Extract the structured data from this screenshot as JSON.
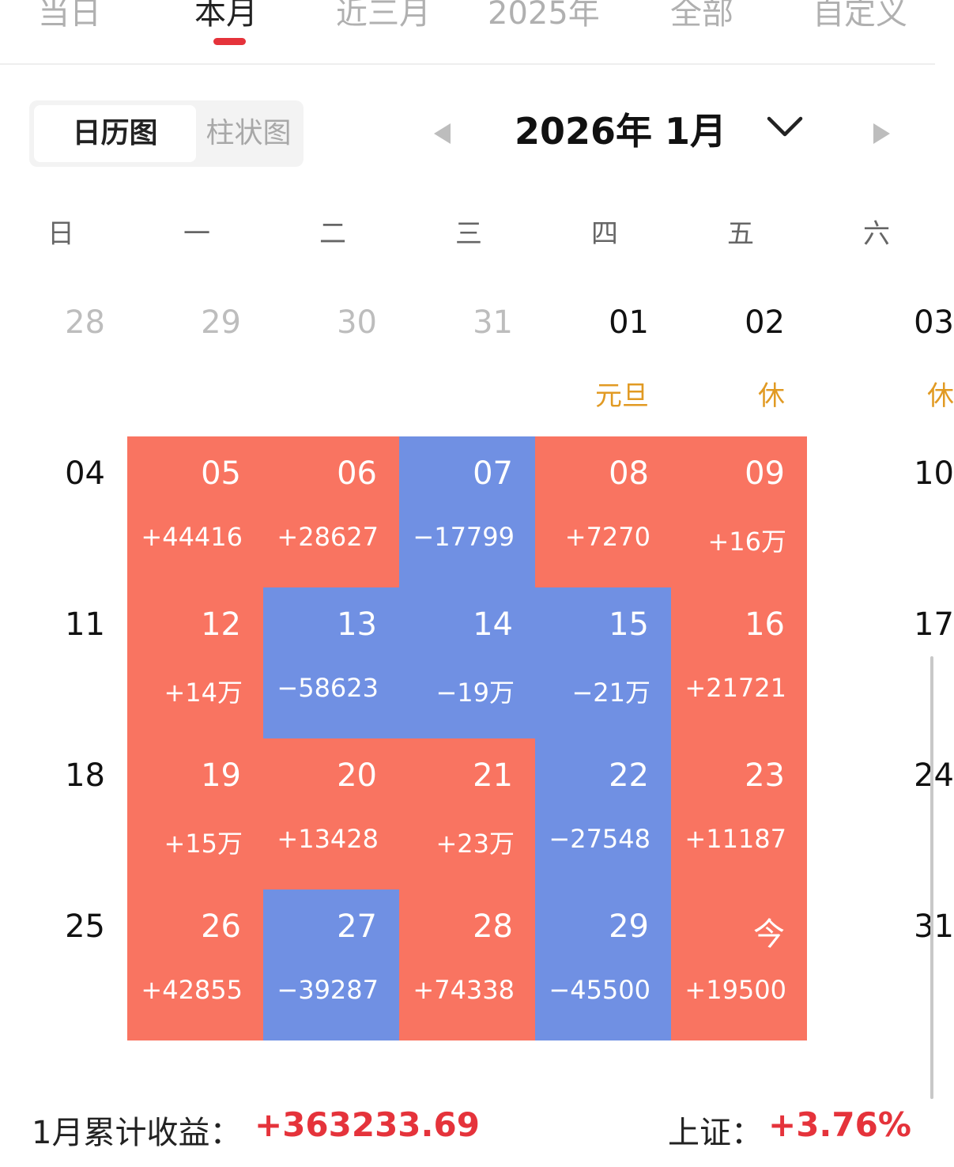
{
  "period_tabs": [
    "当日",
    "本月",
    "近三月",
    "2025年",
    "全部",
    "自定义"
  ],
  "active_period": "本月",
  "view_toggle": {
    "calendar": "日历图",
    "bar": "柱状图"
  },
  "month_nav": {
    "title": "2026年 1月"
  },
  "weekdays": [
    "日",
    "一",
    "二",
    "三",
    "四",
    "五",
    "六"
  ],
  "weeks": [
    [
      {
        "day": "28",
        "muted": true
      },
      {
        "day": "29",
        "muted": true
      },
      {
        "day": "30",
        "muted": true
      },
      {
        "day": "31",
        "muted": true
      },
      {
        "day": "01",
        "holiday": "元旦"
      },
      {
        "day": "02",
        "holiday": "休"
      },
      {
        "day": "03",
        "holiday": "休"
      }
    ],
    [
      {
        "day": "04"
      },
      {
        "day": "05",
        "amount": "+44416",
        "trend": "up"
      },
      {
        "day": "06",
        "amount": "+28627",
        "trend": "up"
      },
      {
        "day": "07",
        "amount": "−17799",
        "trend": "down"
      },
      {
        "day": "08",
        "amount": "+7270",
        "trend": "up"
      },
      {
        "day": "09",
        "amount": "+16万",
        "trend": "up"
      },
      {
        "day": "10"
      }
    ],
    [
      {
        "day": "11"
      },
      {
        "day": "12",
        "amount": "+14万",
        "trend": "up"
      },
      {
        "day": "13",
        "amount": "−58623",
        "trend": "down"
      },
      {
        "day": "14",
        "amount": "−19万",
        "trend": "down"
      },
      {
        "day": "15",
        "amount": "−21万",
        "trend": "down"
      },
      {
        "day": "16",
        "amount": "+21721",
        "trend": "up"
      },
      {
        "day": "17"
      }
    ],
    [
      {
        "day": "18"
      },
      {
        "day": "19",
        "amount": "+15万",
        "trend": "up"
      },
      {
        "day": "20",
        "amount": "+13428",
        "trend": "up"
      },
      {
        "day": "21",
        "amount": "+23万",
        "trend": "up"
      },
      {
        "day": "22",
        "amount": "−27548",
        "trend": "down"
      },
      {
        "day": "23",
        "amount": "+11187",
        "trend": "up"
      },
      {
        "day": "24"
      }
    ],
    [
      {
        "day": "25"
      },
      {
        "day": "26",
        "amount": "+42855",
        "trend": "up"
      },
      {
        "day": "27",
        "amount": "−39287",
        "trend": "down"
      },
      {
        "day": "28",
        "amount": "+74338",
        "trend": "up"
      },
      {
        "day": "29",
        "amount": "−45500",
        "trend": "down"
      },
      {
        "day": "今",
        "amount": "+19500",
        "trend": "up"
      },
      {
        "day": "31"
      }
    ]
  ],
  "summary": {
    "label": "1月累计收益：",
    "value": "+363233.69",
    "index_label": "上证：",
    "index_value": "+3.76%"
  },
  "colors": {
    "up": "#f97461",
    "down": "#7090e3",
    "accent": "#e5333b",
    "holiday": "#e19a23"
  },
  "icons": {
    "prev": "caret-left-icon",
    "next": "caret-right-icon",
    "dropdown": "chevron-down-icon"
  }
}
